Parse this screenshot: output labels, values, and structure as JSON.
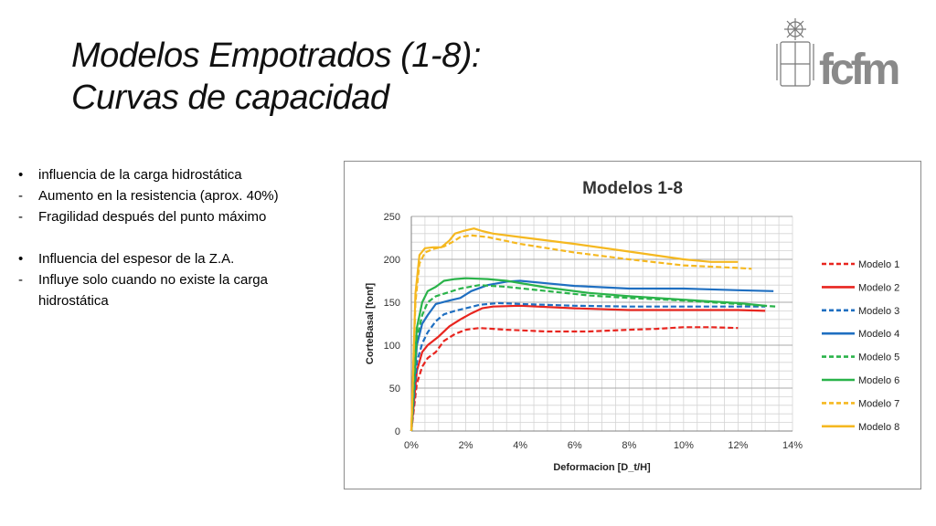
{
  "slide": {
    "title_line1": "Modelos Empotrados (1-8):",
    "title_line2": "Curvas de capacidad",
    "logo_text": "fcfm",
    "bullets": [
      {
        "marker": "•",
        "text": "influencia de la carga hidrostática"
      },
      {
        "marker": "-",
        "text": "Aumento en la resistencia (aprox. 40%)"
      },
      {
        "marker": "-",
        "text": "Fragilidad después del punto máximo"
      },
      {
        "marker": "",
        "text": ""
      },
      {
        "marker": "•",
        "text": "Influencia del espesor de la Z.A."
      },
      {
        "marker": "-",
        "text": "Influye solo cuando no existe la carga hidrostática"
      }
    ]
  },
  "colors": {
    "red": "#e8251f",
    "blue": "#1f6fc1",
    "green": "#2ab34a",
    "yellow": "#f5b820"
  },
  "chart_data": {
    "type": "line",
    "title": "Modelos 1-8",
    "xlabel": "Deformacion [D_t/H]",
    "ylabel": "CorteBasal [tonf]",
    "xlim": [
      0,
      14
    ],
    "ylim": [
      0,
      250
    ],
    "x_ticks": [
      "0%",
      "2%",
      "4%",
      "6%",
      "8%",
      "10%",
      "12%",
      "14%"
    ],
    "y_ticks": [
      "0",
      "50",
      "100",
      "150",
      "200",
      "250"
    ],
    "grid": true,
    "legend_position": "right",
    "series": [
      {
        "name": "Modelo 1",
        "color": "#e8251f",
        "dashed": true,
        "points": [
          [
            0,
            0
          ],
          [
            0.2,
            55
          ],
          [
            0.4,
            75
          ],
          [
            0.6,
            85
          ],
          [
            0.9,
            92
          ],
          [
            1.2,
            105
          ],
          [
            1.6,
            113
          ],
          [
            2.0,
            118
          ],
          [
            2.5,
            120
          ],
          [
            3.5,
            118
          ],
          [
            5,
            116
          ],
          [
            6.5,
            116
          ],
          [
            8,
            118
          ],
          [
            9,
            119
          ],
          [
            10,
            121
          ],
          [
            11,
            121
          ],
          [
            12,
            120
          ]
        ]
      },
      {
        "name": "Modelo 2",
        "color": "#e8251f",
        "dashed": false,
        "points": [
          [
            0,
            0
          ],
          [
            0.2,
            70
          ],
          [
            0.4,
            92
          ],
          [
            0.6,
            100
          ],
          [
            1.0,
            110
          ],
          [
            1.4,
            122
          ],
          [
            1.8,
            130
          ],
          [
            2.2,
            137
          ],
          [
            2.6,
            143
          ],
          [
            3.0,
            145
          ],
          [
            4,
            146
          ],
          [
            6,
            143
          ],
          [
            8,
            141
          ],
          [
            10,
            141
          ],
          [
            12,
            141
          ],
          [
            13,
            140
          ]
        ]
      },
      {
        "name": "Modelo 3",
        "color": "#1f6fc1",
        "dashed": true,
        "points": [
          [
            0,
            0
          ],
          [
            0.2,
            80
          ],
          [
            0.4,
            102
          ],
          [
            0.6,
            115
          ],
          [
            0.9,
            128
          ],
          [
            1.2,
            136
          ],
          [
            1.6,
            140
          ],
          [
            2.0,
            143
          ],
          [
            2.5,
            147
          ],
          [
            3.2,
            149
          ],
          [
            4,
            148
          ],
          [
            6,
            146
          ],
          [
            8,
            145
          ],
          [
            10,
            145
          ],
          [
            12,
            145
          ],
          [
            13,
            145
          ]
        ]
      },
      {
        "name": "Modelo 4",
        "color": "#1f6fc1",
        "dashed": false,
        "points": [
          [
            0,
            0
          ],
          [
            0.2,
            100
          ],
          [
            0.4,
            125
          ],
          [
            0.6,
            135
          ],
          [
            0.9,
            148
          ],
          [
            1.4,
            152
          ],
          [
            1.8,
            155
          ],
          [
            2.2,
            163
          ],
          [
            2.8,
            170
          ],
          [
            3.5,
            174
          ],
          [
            4,
            175
          ],
          [
            5,
            172
          ],
          [
            6,
            169
          ],
          [
            8,
            166
          ],
          [
            10,
            166
          ],
          [
            12,
            164
          ],
          [
            13.3,
            163
          ]
        ]
      },
      {
        "name": "Modelo 5",
        "color": "#2ab34a",
        "dashed": true,
        "points": [
          [
            0,
            0
          ],
          [
            0.2,
            108
          ],
          [
            0.4,
            135
          ],
          [
            0.6,
            150
          ],
          [
            0.9,
            157
          ],
          [
            1.3,
            161
          ],
          [
            1.8,
            166
          ],
          [
            2.5,
            170
          ],
          [
            3.5,
            168
          ],
          [
            5,
            163
          ],
          [
            6.5,
            158
          ],
          [
            8,
            155
          ],
          [
            10,
            152
          ],
          [
            12,
            148
          ],
          [
            13.4,
            145
          ]
        ]
      },
      {
        "name": "Modelo 6",
        "color": "#2ab34a",
        "dashed": false,
        "points": [
          [
            0,
            0
          ],
          [
            0.2,
            120
          ],
          [
            0.4,
            150
          ],
          [
            0.6,
            163
          ],
          [
            0.9,
            168
          ],
          [
            1.2,
            175
          ],
          [
            1.6,
            177
          ],
          [
            2.0,
            178
          ],
          [
            2.8,
            177
          ],
          [
            3.5,
            175
          ],
          [
            5,
            167
          ],
          [
            6.5,
            161
          ],
          [
            8,
            157
          ],
          [
            10,
            153
          ],
          [
            12,
            149
          ],
          [
            13,
            146
          ]
        ]
      },
      {
        "name": "Modelo 7",
        "color": "#f5b820",
        "dashed": true,
        "points": [
          [
            0,
            0
          ],
          [
            0.15,
            150
          ],
          [
            0.3,
            195
          ],
          [
            0.5,
            208
          ],
          [
            0.8,
            212
          ],
          [
            1.2,
            215
          ],
          [
            1.5,
            220
          ],
          [
            1.8,
            226
          ],
          [
            2.2,
            228
          ],
          [
            2.8,
            226
          ],
          [
            4,
            218
          ],
          [
            6,
            208
          ],
          [
            8,
            200
          ],
          [
            10,
            193
          ],
          [
            12,
            190
          ],
          [
            12.5,
            189
          ]
        ]
      },
      {
        "name": "Modelo 8",
        "color": "#f5b820",
        "dashed": false,
        "points": [
          [
            0,
            0
          ],
          [
            0.15,
            160
          ],
          [
            0.3,
            205
          ],
          [
            0.5,
            213
          ],
          [
            0.8,
            214
          ],
          [
            1.1,
            214
          ],
          [
            1.4,
            222
          ],
          [
            1.6,
            230
          ],
          [
            1.9,
            233
          ],
          [
            2.3,
            236
          ],
          [
            2.6,
            233
          ],
          [
            3,
            230
          ],
          [
            4,
            226
          ],
          [
            6,
            218
          ],
          [
            8,
            209
          ],
          [
            10,
            200
          ],
          [
            11,
            197
          ],
          [
            12,
            197
          ]
        ]
      }
    ]
  }
}
